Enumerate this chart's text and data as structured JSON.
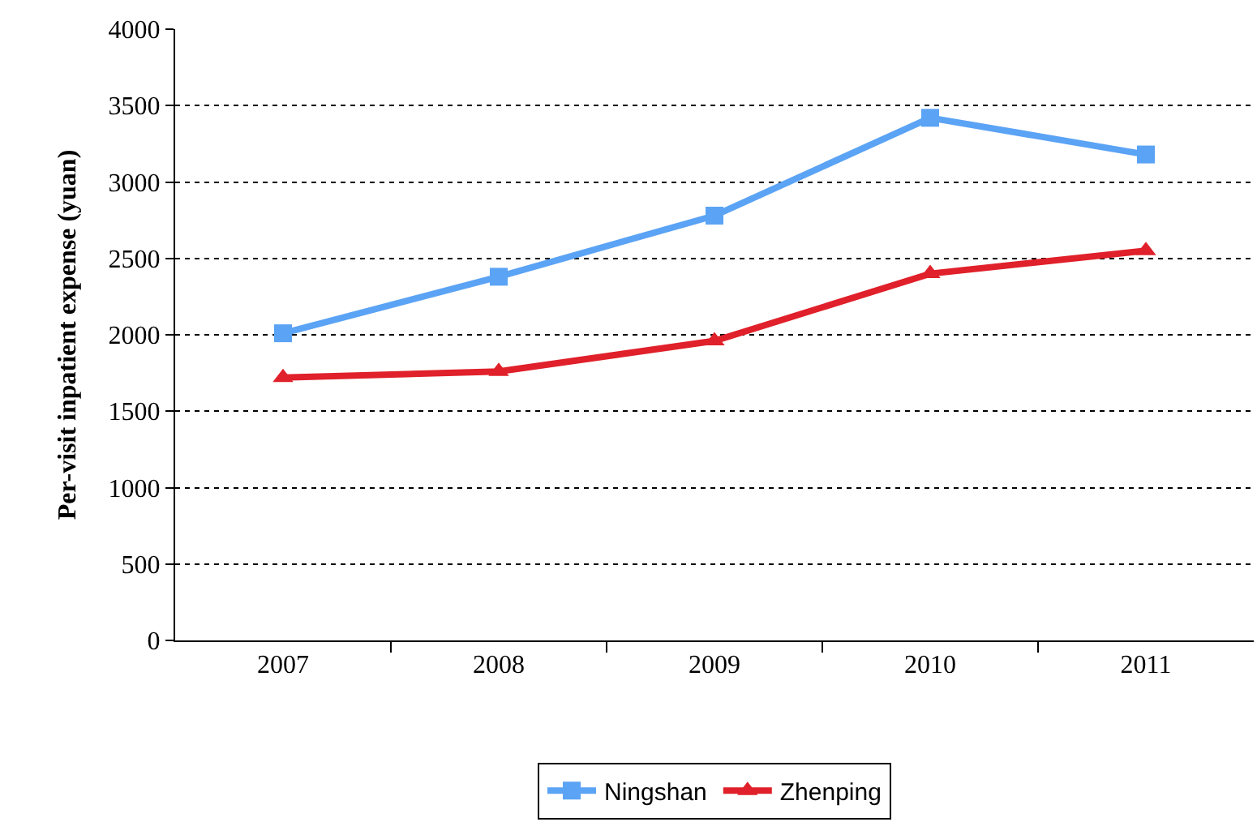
{
  "chart_data": {
    "type": "line",
    "ylabel": "Per-visit inpatient expense (yuan)",
    "categories": [
      "2007",
      "2008",
      "2009",
      "2010",
      "2011"
    ],
    "series": [
      {
        "name": "Ningshan",
        "color": "#5ba3f5",
        "values": [
          2010,
          2380,
          2780,
          3420,
          3180
        ],
        "marker": "square"
      },
      {
        "name": "Zhenping",
        "color": "#e0202a",
        "values": [
          1720,
          1760,
          1960,
          2400,
          2550
        ],
        "marker": "triangle"
      }
    ],
    "ylim": [
      0,
      4000
    ],
    "yticks": [
      0,
      500,
      1000,
      1500,
      2000,
      2500,
      3000,
      3500,
      4000
    ],
    "grid": "y",
    "legend": "bottom",
    "line_style": "solid"
  }
}
